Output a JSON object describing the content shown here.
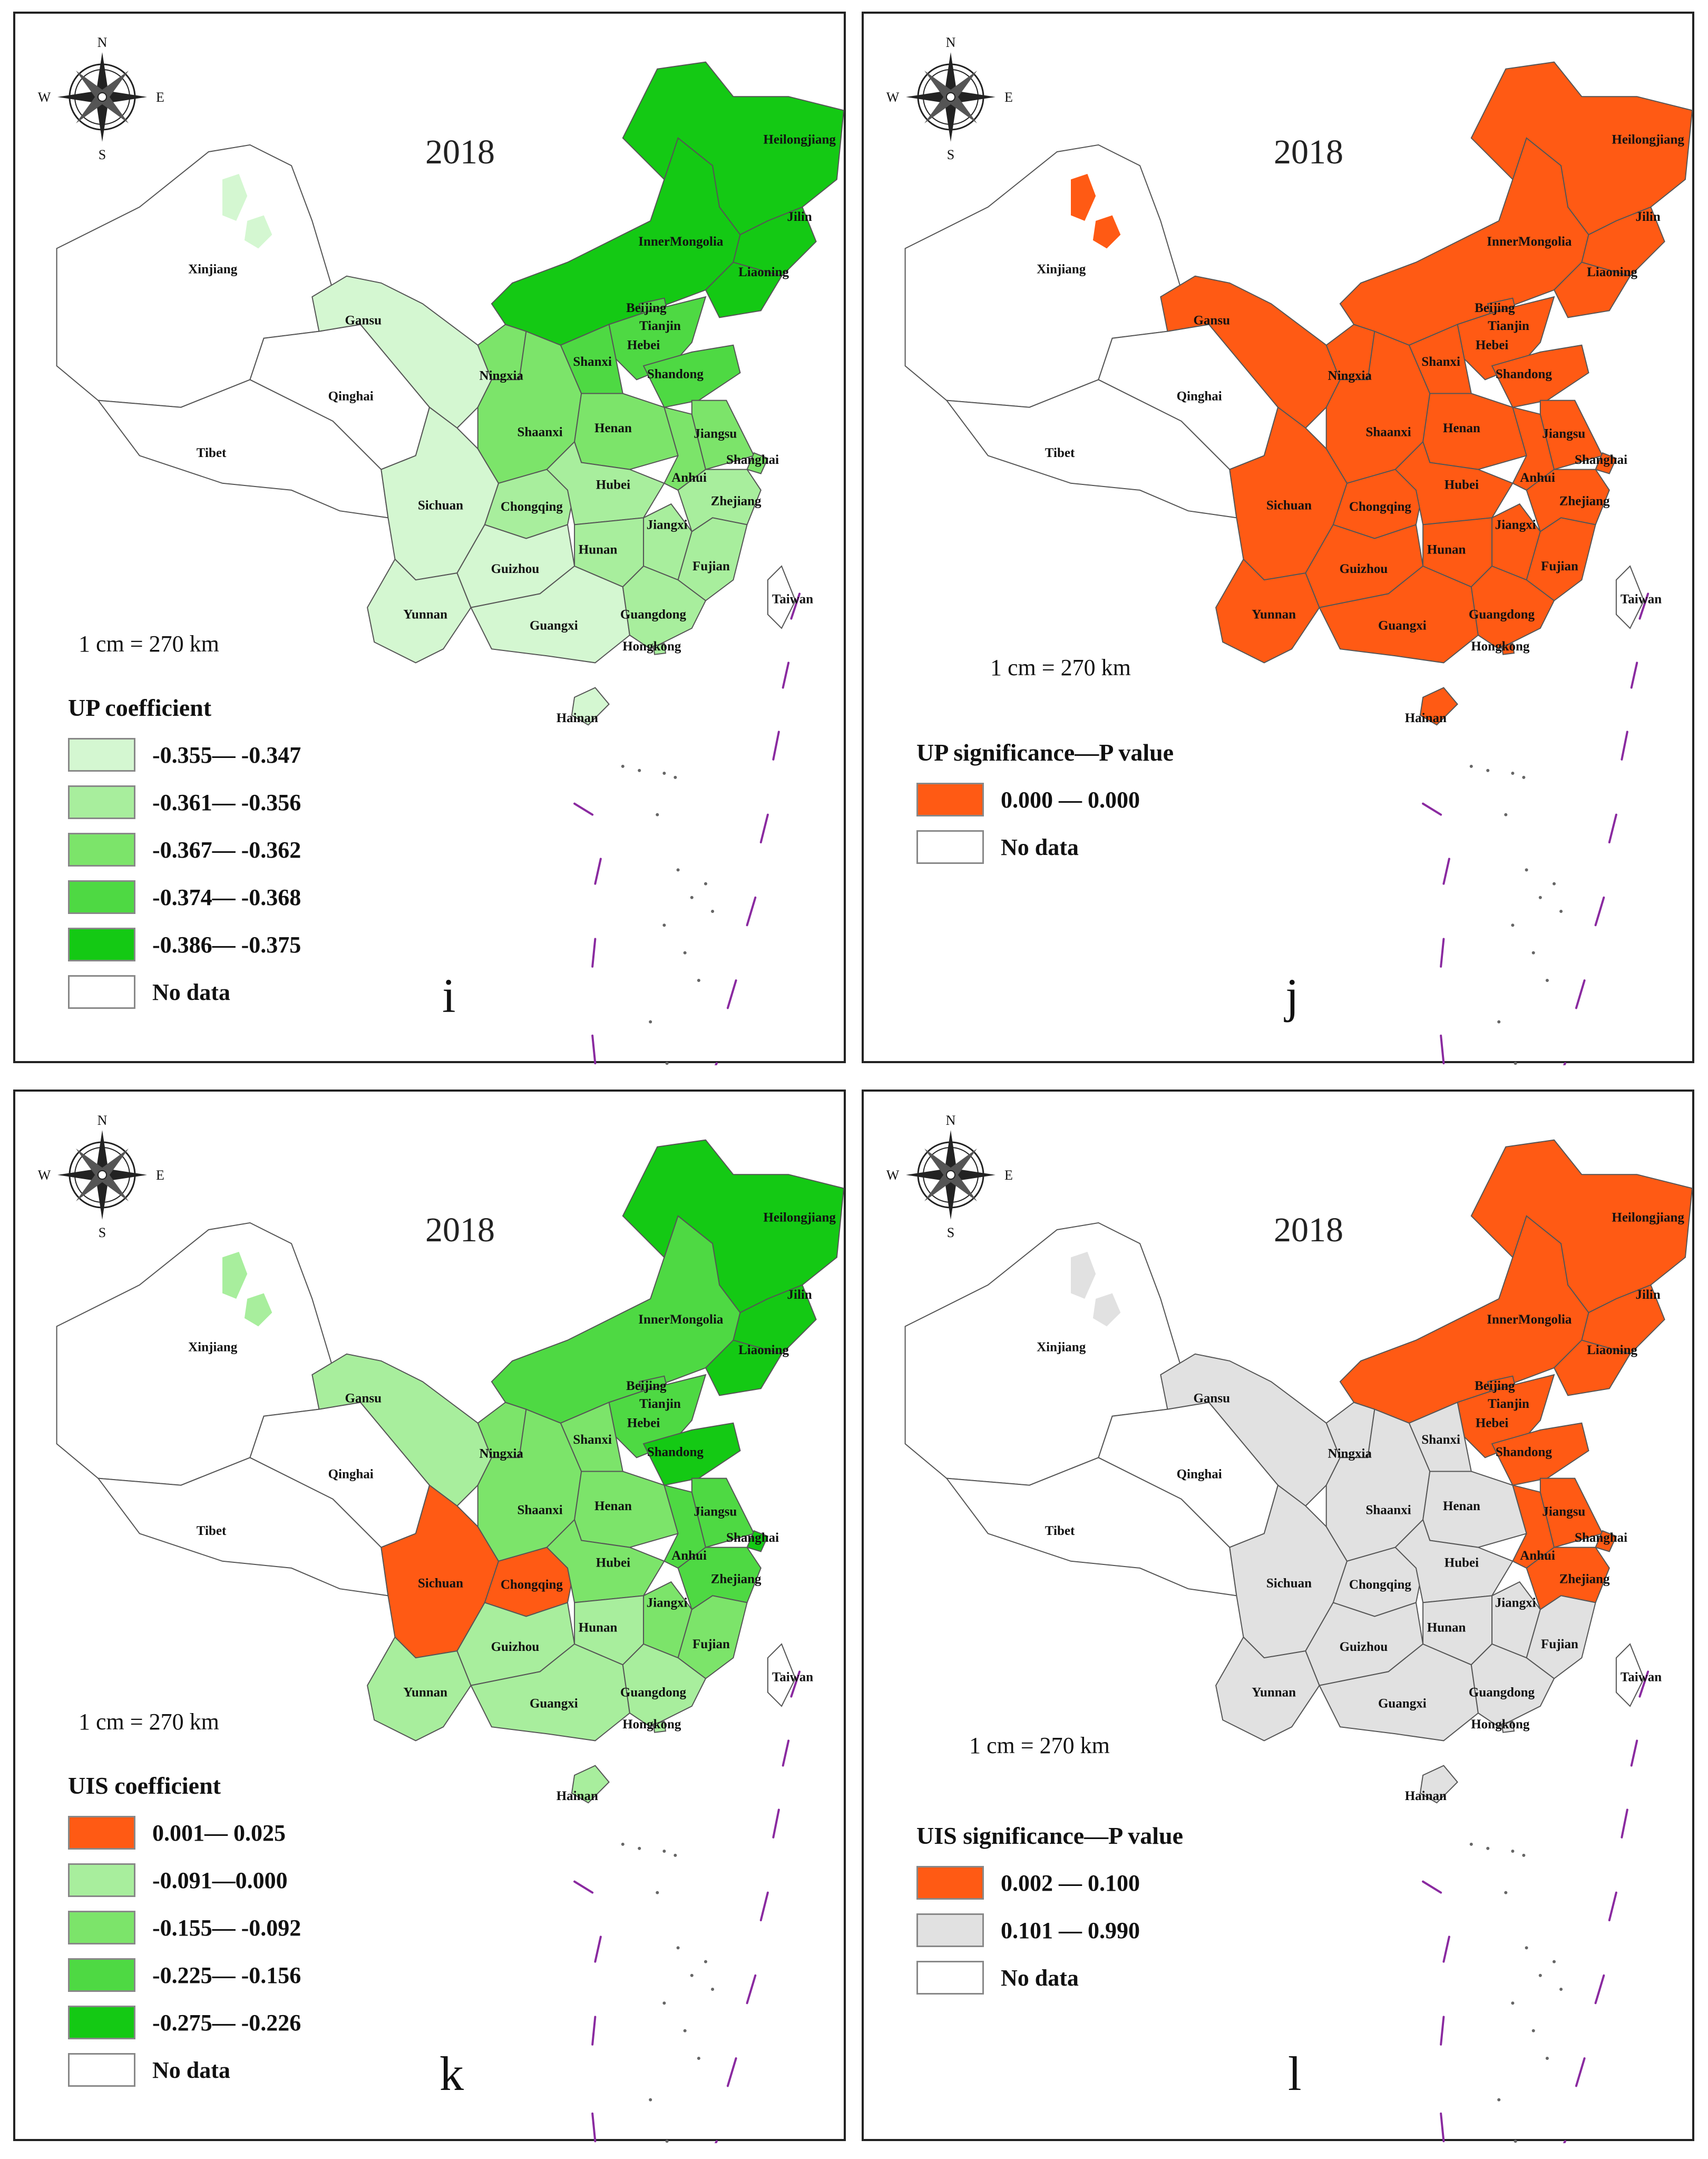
{
  "colors": {
    "no_data": "#ffffff",
    "orange": "#ff5a14",
    "grey": "#e1e1e1",
    "up_green": [
      "#d4f7d1",
      "#a8ee9d",
      "#7ce46a",
      "#4ed943",
      "#14c914"
    ],
    "uis_green": [
      "#a8ee9d",
      "#7ce46a",
      "#4ed943",
      "#14c914"
    ]
  },
  "compass": {
    "n": "N",
    "s": "S",
    "e": "E",
    "w": "W"
  },
  "provinces": {
    "heilongjiang": "Heilongjiang",
    "jilin": "Jilin",
    "liaoning": "Liaoning",
    "innermongolia": "InnerMongolia",
    "beijing": "Beijing",
    "tianjin": "Tianjin",
    "hebei": "Hebei",
    "shanxi": "Shanxi",
    "shandong": "Shandong",
    "ningxia": "Ningxia",
    "gansu": "Gansu",
    "xinjiang": "Xinjiang",
    "qinghai": "Qinghai",
    "tibet": "Tibet",
    "shaanxi": "Shaanxi",
    "henan": "Henan",
    "jiangsu": "Jiangsu",
    "shanghai": "Shanghai",
    "anhui": "Anhui",
    "hubei": "Hubei",
    "sichuan": "Sichuan",
    "chongqing": "Chongqing",
    "zhejiang": "Zhejiang",
    "jiangxi": "Jiangxi",
    "hunan": "Hunan",
    "guizhou": "Guizhou",
    "fujian": "Fujian",
    "yunnan": "Yunnan",
    "guangxi": "Guangxi",
    "guangdong": "Guangdong",
    "hongkong": "Hongkong",
    "taiwan": "Taiwan",
    "hainan": "Hainan"
  },
  "panels": [
    {
      "id": "i",
      "letter": "i",
      "year": "2018",
      "scale_text": "1 cm = 270 km",
      "legend_title": "UP coefficient",
      "legend": [
        {
          "label": "-0.355— -0.347",
          "color": "#d4f7d1"
        },
        {
          "label": "-0.361— -0.356",
          "color": "#a8ee9d"
        },
        {
          "label": "-0.367— -0.362",
          "color": "#7ce46a"
        },
        {
          "label": "-0.374— -0.368",
          "color": "#4ed943"
        },
        {
          "label": "-0.386— -0.375",
          "color": "#14c914"
        },
        {
          "label": "No data",
          "color": "#ffffff"
        }
      ]
    },
    {
      "id": "j",
      "letter": "j",
      "year": "2018",
      "scale_text": "1 cm = 270 km",
      "legend_title": "UP significance—P value",
      "legend": [
        {
          "label": "0.000 — 0.000",
          "color": "#ff5a14"
        },
        {
          "label": "No data",
          "color": "#ffffff"
        }
      ]
    },
    {
      "id": "k",
      "letter": "k",
      "year": "2018",
      "scale_text": "1 cm = 270 km",
      "legend_title": "UIS coefficient",
      "legend": [
        {
          "label": "0.001— 0.025",
          "color": "#ff5a14"
        },
        {
          "label": "-0.091—0.000",
          "color": "#a8ee9d"
        },
        {
          "label": "-0.155— -0.092",
          "color": "#7ce46a"
        },
        {
          "label": "-0.225— -0.156",
          "color": "#4ed943"
        },
        {
          "label": "-0.275— -0.226",
          "color": "#14c914"
        },
        {
          "label": "No data",
          "color": "#ffffff"
        }
      ]
    },
    {
      "id": "l",
      "letter": "l",
      "year": "2018",
      "scale_text": "1 cm = 270 km",
      "legend_title": "UIS significance—P value",
      "legend": [
        {
          "label": "0.002 — 0.100",
          "color": "#ff5a14"
        },
        {
          "label": "0.101 — 0.990",
          "color": "#e1e1e1"
        },
        {
          "label": "No data",
          "color": "#ffffff"
        }
      ]
    }
  ]
}
